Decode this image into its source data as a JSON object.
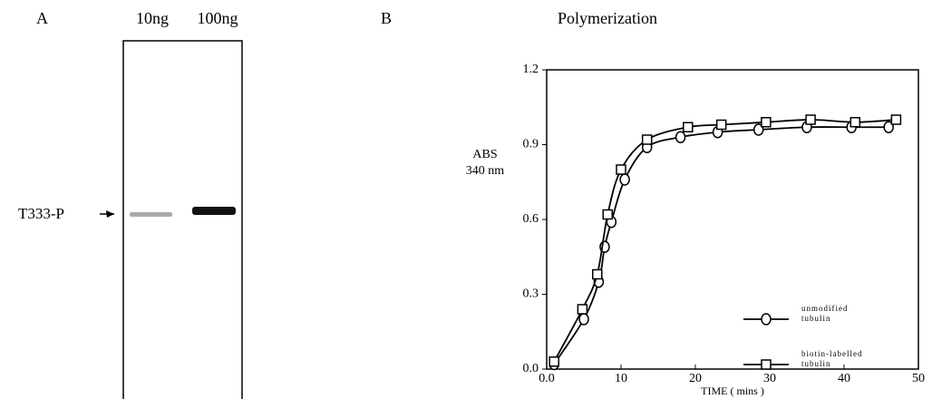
{
  "panel_a": {
    "label": "A",
    "lanes": [
      "10ng",
      "100ng"
    ],
    "band_label": "T333-P"
  },
  "panel_b": {
    "label": "B"
  },
  "chart_data": {
    "type": "line",
    "title": "Polymerization",
    "x_label": "TIME ( mins )",
    "y_label": "ABS\n340 nm",
    "xlim": [
      0,
      50
    ],
    "xticks": [
      {
        "value": 0,
        "label": "0.0"
      },
      10,
      20,
      30,
      40,
      50
    ],
    "ylim": [
      0,
      1.2
    ],
    "yticks": [
      {
        "value": 0,
        "label": "0.0"
      },
      0.3,
      0.6,
      0.9,
      1.2
    ],
    "grid": false,
    "legend": "lower right",
    "series": [
      {
        "name": "unmodified\ntubulin",
        "color": "#000000",
        "marker": "circle",
        "x": [
          1,
          5,
          7,
          7.8,
          8.7,
          10.5,
          13.5,
          18,
          23,
          28.5,
          35,
          41,
          46
        ],
        "values": [
          0.02,
          0.2,
          0.35,
          0.49,
          0.59,
          0.76,
          0.89,
          0.93,
          0.95,
          0.96,
          0.97,
          0.97,
          0.97
        ]
      },
      {
        "name": "biotin-labelled\ntubulin",
        "color": "#000000",
        "marker": "square",
        "x": [
          1,
          4.8,
          6.8,
          8.2,
          10,
          13.5,
          19,
          23.5,
          29.5,
          35.5,
          41.5,
          47
        ],
        "values": [
          0.03,
          0.24,
          0.38,
          0.62,
          0.8,
          0.92,
          0.97,
          0.98,
          0.99,
          1.0,
          0.99,
          1.0
        ]
      }
    ]
  }
}
